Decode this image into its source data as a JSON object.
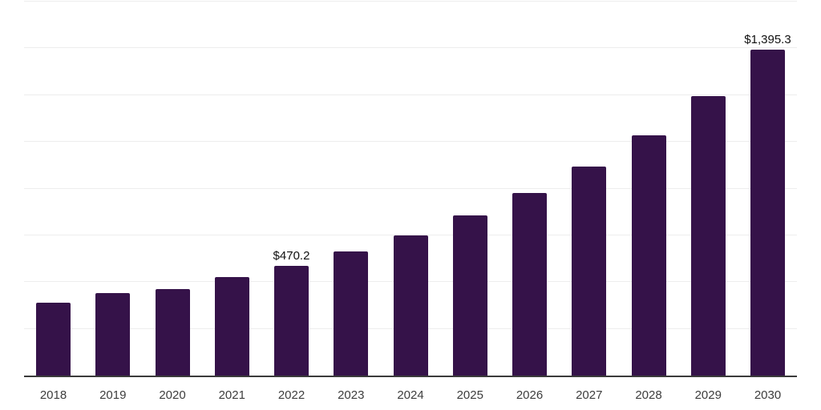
{
  "chart_data": {
    "type": "bar",
    "title": "",
    "xlabel": "",
    "ylabel": "",
    "categories": [
      "2018",
      "2019",
      "2020",
      "2021",
      "2022",
      "2023",
      "2024",
      "2025",
      "2026",
      "2027",
      "2028",
      "2029",
      "2030"
    ],
    "values": [
      311,
      354,
      369,
      420,
      470.2,
      531,
      598,
      686,
      782,
      894,
      1029,
      1195,
      1395.3
    ],
    "labeled_points": [
      {
        "category": "2022",
        "label": "$470.2"
      },
      {
        "category": "2030",
        "label": "$1,395.3"
      }
    ],
    "ylim": [
      0,
      1600
    ],
    "gridline_interval": 200,
    "grid": true,
    "y_axis_labels_visible": false,
    "legend": false
  },
  "style": {
    "background": "#ffffff",
    "bar_color": "#351249",
    "gridline_color": "#ededed",
    "axis_line_color": "#3b3b3b",
    "tick_label_color": "#3d3d3d",
    "data_label_color": "#111111"
  }
}
